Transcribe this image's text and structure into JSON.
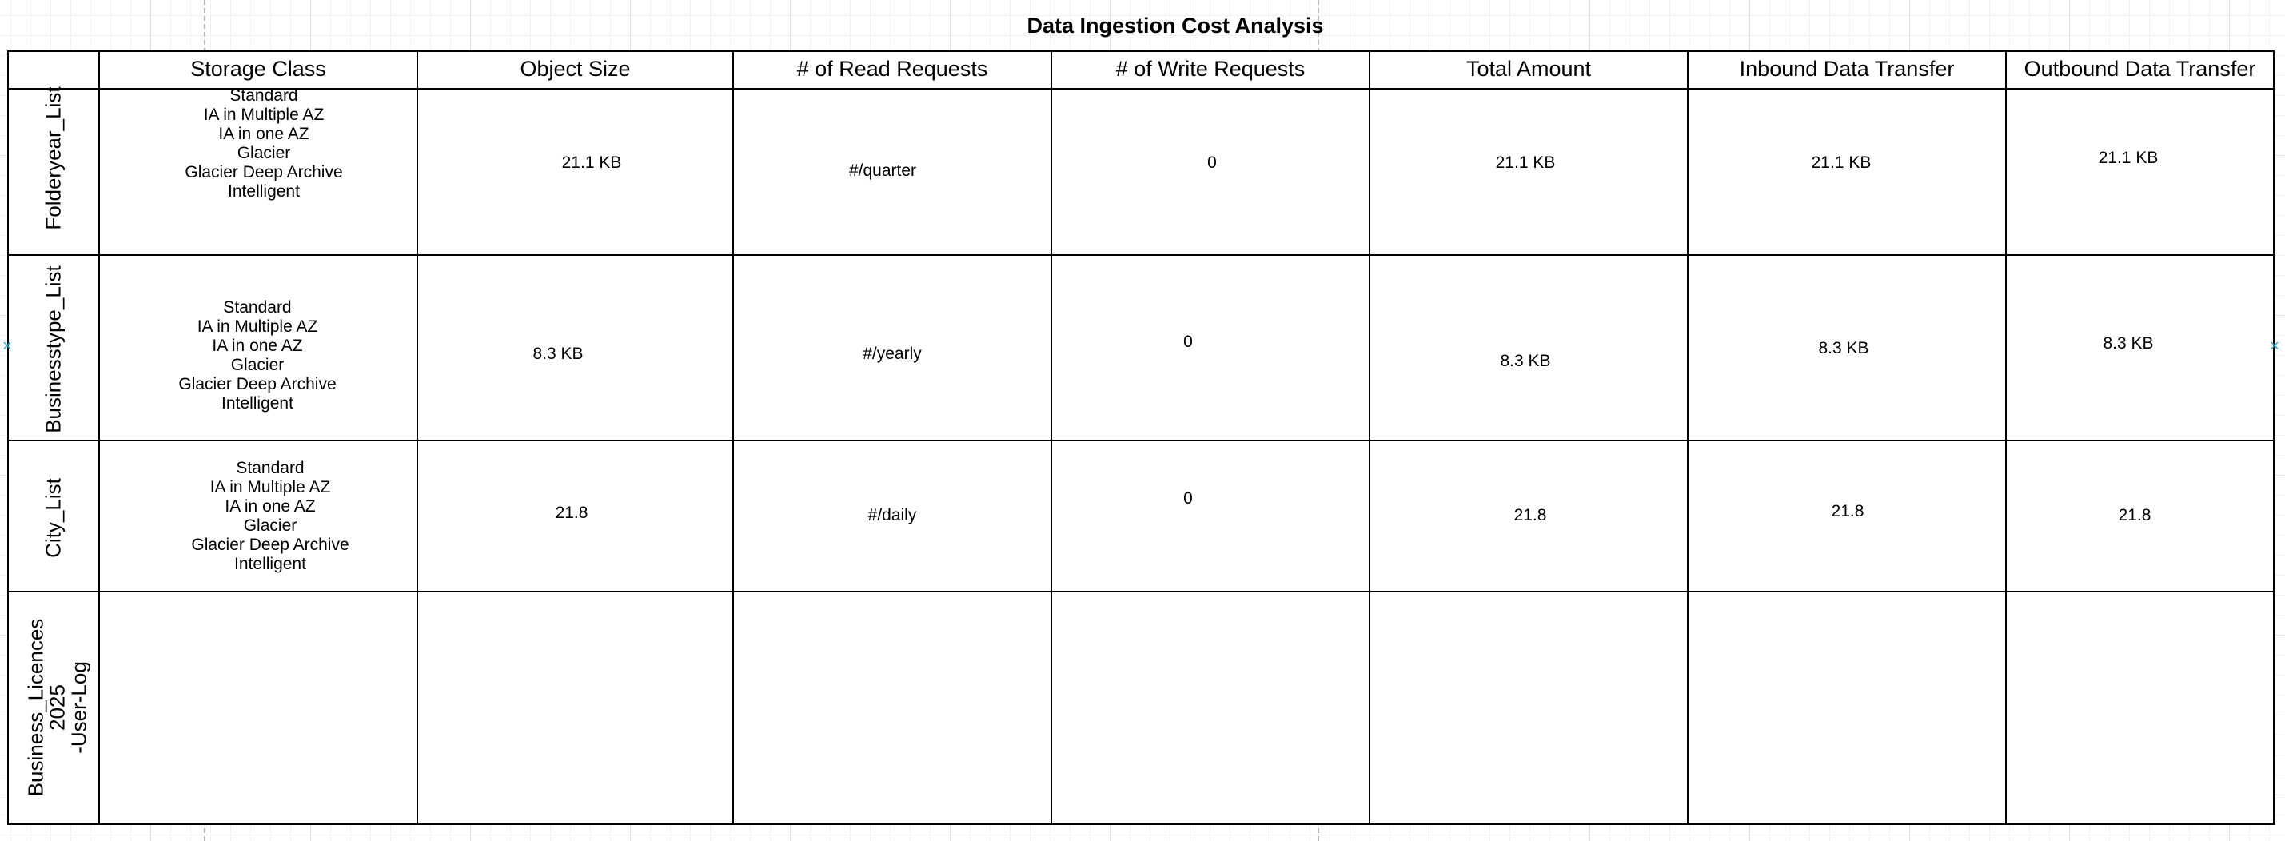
{
  "title": "Data Ingestion Cost Analysis",
  "headers": [
    "Storage Class",
    "Object Size",
    "# of Read Requests",
    "# of Write Requests",
    "Total Amount",
    "Inbound Data Transfer",
    "Outbound Data Transfer"
  ],
  "storage_classes": [
    "Standard",
    "IA in Multiple AZ",
    "IA in one AZ",
    "Glacier",
    "Glacier Deep Archive",
    "Intelligent"
  ],
  "rows": [
    {
      "label": "Folderyear_List",
      "object_size": "21.1  KB",
      "read_requests": "#/quarter",
      "write_requests": "0",
      "total_amount": "21.1  KB",
      "inbound": "21.1  KB",
      "outbound": "21.1 KB"
    },
    {
      "label": "Businesstype_List",
      "object_size": "8.3 KB",
      "read_requests": "#/yearly",
      "write_requests": "0",
      "total_amount": "8.3 KB",
      "inbound": "8.3 KB",
      "outbound": "8.3 KB"
    },
    {
      "label": "City_List",
      "object_size": "21.8",
      "read_requests": "#/daily",
      "write_requests": "0",
      "total_amount": "21.8",
      "inbound": "21.8",
      "outbound": "21.8"
    },
    {
      "label": "Business_Licences\n2025\n-User-Log"
    }
  ],
  "colors": {
    "grid_line": "#e2e2e2",
    "table_border": "#000000",
    "selection_marker": "#29a6d8"
  }
}
